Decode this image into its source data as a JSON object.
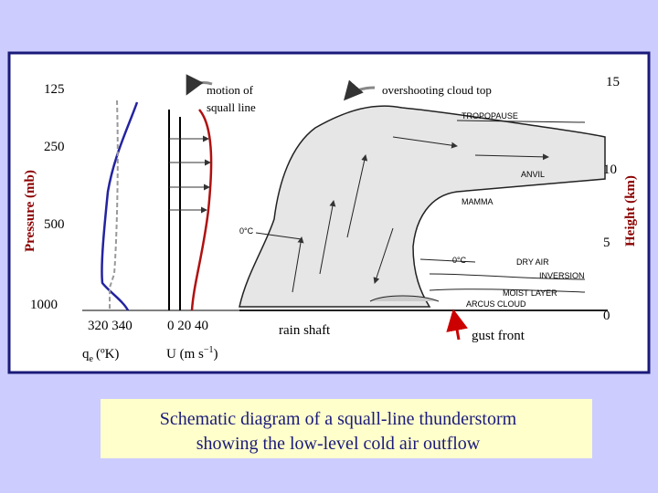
{
  "left_axis": {
    "title": "Pressure (mb)",
    "labels": [
      "125",
      "250",
      "500",
      "1000"
    ]
  },
  "right_axis": {
    "title": "Height (km)",
    "labels": [
      "15",
      "10",
      "5",
      "0"
    ]
  },
  "profiles": {
    "theta_ticks": "320 340",
    "theta_symbol": "q",
    "theta_subscript": "e",
    "theta_unit": "(ºK)",
    "wind_ticks": "0 20 40",
    "wind_label": "U (m s",
    "wind_exponent": "−1",
    "wind_close": ")"
  },
  "annotations": {
    "motion": [
      "motion of",
      "squall line"
    ],
    "overshoot": "overshooting cloud top",
    "rain": "rain shaft",
    "gust": "gust front"
  },
  "cloud_labels": {
    "tropopause": "TROPOPAUSE",
    "anvil": "ANVIL",
    "mamma": "MAMMA",
    "freezing_left": "0°C",
    "freezing_right": "0°C",
    "dry_air": "DRY AIR",
    "inversion": "INVERSION",
    "moist_layer": "MOIST LAYER",
    "arcus": "ARCUS CLOUD"
  },
  "caption": [
    "Schematic diagram of a squall-line thunderstorm",
    "showing the low-level cold air outflow"
  ]
}
